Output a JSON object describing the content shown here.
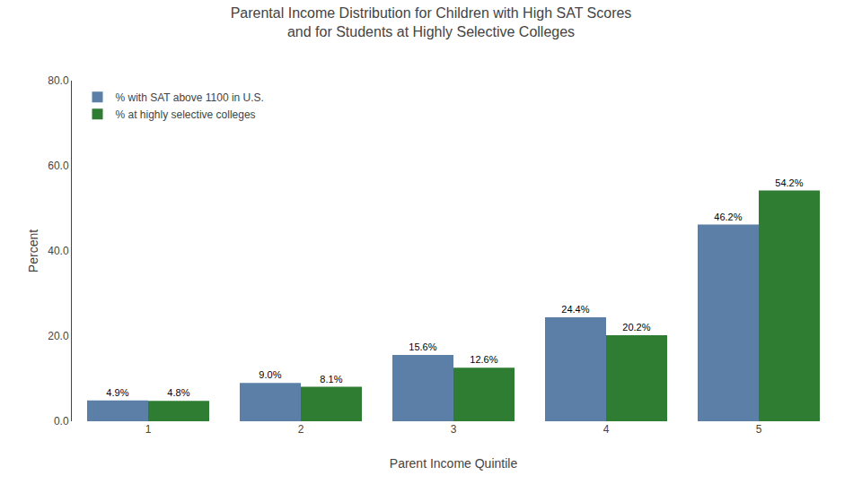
{
  "chart_data": {
    "type": "bar",
    "title": "Parental Income Distribution for Children with High SAT Scores\nand for Students at Highly Selective Colleges",
    "xlabel": "Parent Income Quintile",
    "ylabel": "Percent",
    "categories": [
      "1",
      "2",
      "3",
      "4",
      "5"
    ],
    "series": [
      {
        "name": "% with SAT above 1100 in U.S.",
        "color": "#5b7fa6",
        "values": [
          4.9,
          9.0,
          15.6,
          24.4,
          46.2
        ],
        "value_labels": [
          "4.9%",
          "9.0%",
          "15.6%",
          "24.4%",
          "46.2%"
        ]
      },
      {
        "name": "% at highly selective colleges",
        "color": "#2e7d32",
        "values": [
          4.8,
          8.1,
          12.6,
          20.2,
          54.2
        ],
        "value_labels": [
          "4.8%",
          "8.1%",
          "12.6%",
          "20.2%",
          "54.2%"
        ]
      }
    ],
    "ylim": [
      0,
      80
    ],
    "yticks": [
      {
        "value": 0,
        "label": "0.0"
      },
      {
        "value": 20,
        "label": "20.0"
      },
      {
        "value": 40,
        "label": "40.0"
      },
      {
        "value": 60,
        "label": "60.0"
      },
      {
        "value": 80,
        "label": "80.0"
      }
    ],
    "grid": false,
    "legend": "upper left",
    "data_labels": true
  }
}
